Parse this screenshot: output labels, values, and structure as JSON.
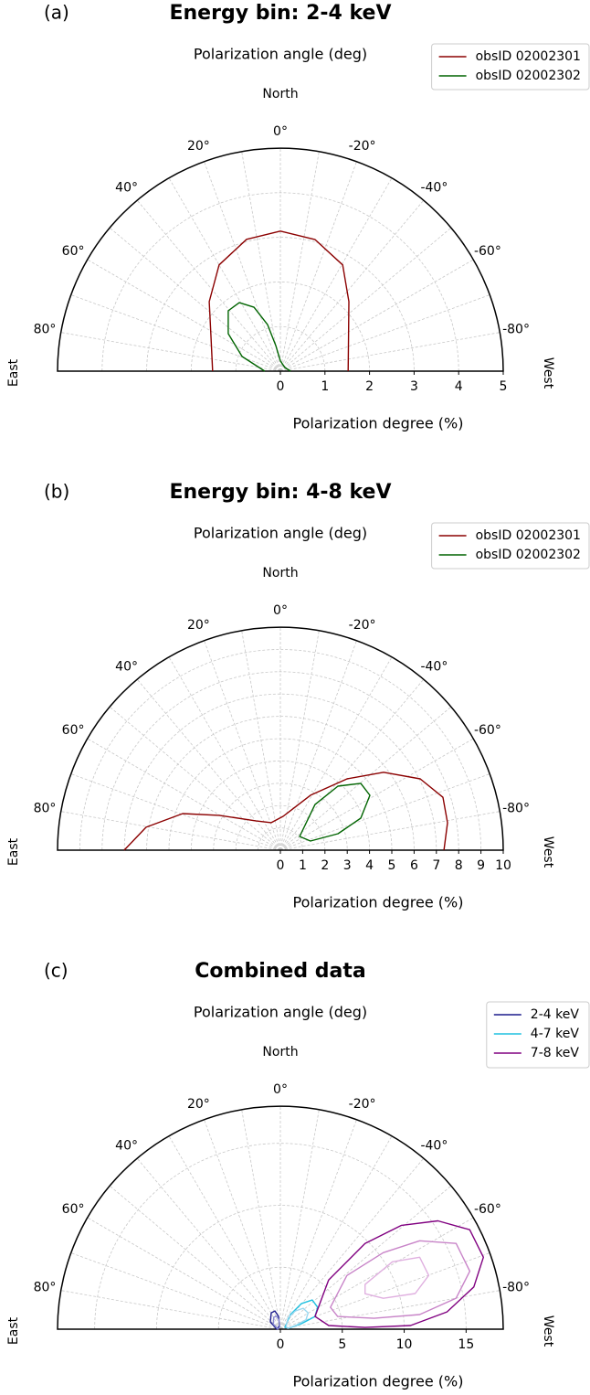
{
  "chart_data": [
    {
      "type": "polar_contour",
      "panel_label": "(a)",
      "title": "Energy bin: 2-4 keV",
      "angle_label": "Polarization angle (deg)",
      "north_label": "North",
      "east_label": "East",
      "west_label": "West",
      "xlabel": "Polarization degree (%)",
      "thetalim": [
        -90,
        90
      ],
      "theta_grid_step": 10,
      "thetaticks": [
        {
          "value": 80,
          "label": "80°"
        },
        {
          "value": 60,
          "label": "60°"
        },
        {
          "value": 40,
          "label": "40°"
        },
        {
          "value": 20,
          "label": "20°"
        },
        {
          "value": 0,
          "label": "0°"
        },
        {
          "value": -20,
          "label": "-20°"
        },
        {
          "value": -40,
          "label": "-40°"
        },
        {
          "value": -60,
          "label": "-60°"
        },
        {
          "value": -80,
          "label": "-80°"
        }
      ],
      "ylim": [
        0,
        5
      ],
      "yticks": [
        0,
        1,
        2,
        3,
        4,
        5
      ],
      "grid": true,
      "legend": "upper right",
      "series": [
        {
          "name": "obsID 02002301",
          "color": "#8b0000",
          "contours": [
            {
              "closed": false,
              "angle": [
                90,
                64.7,
                45.7,
                30.0,
                14.4,
                0,
                -14.8,
                -30.4,
                -44.6,
                -64.1,
                -90
              ],
              "degree": [
                1.52,
                1.72,
                2.23,
                2.75,
                3.05,
                3.14,
                3.05,
                2.76,
                2.19,
                1.7,
                1.52
              ]
            }
          ]
        },
        {
          "name": "obsID 02002302",
          "color": "#006400",
          "contours": [
            {
              "closed": false,
              "angle": [
                90,
                69.1,
                54.3,
                40.8,
                31.0,
                22.5,
                15.4,
                10.1,
                0,
                -51,
                -90
              ],
              "degree": [
                0.35,
                0.92,
                1.44,
                1.79,
                1.79,
                1.55,
                1.08,
                0.58,
                0.23,
                0.13,
                0.23
              ]
            }
          ]
        }
      ]
    },
    {
      "type": "polar_contour",
      "panel_label": "(b)",
      "title": "Energy bin: 4-8 keV",
      "angle_label": "Polarization angle (deg)",
      "north_label": "North",
      "east_label": "East",
      "west_label": "West",
      "xlabel": "Polarization degree (%)",
      "thetalim": [
        -90,
        90
      ],
      "theta_grid_step": 10,
      "thetaticks": [
        {
          "value": 80,
          "label": "80°"
        },
        {
          "value": 60,
          "label": "60°"
        },
        {
          "value": 40,
          "label": "40°"
        },
        {
          "value": 20,
          "label": "20°"
        },
        {
          "value": 0,
          "label": "0°"
        },
        {
          "value": -20,
          "label": "-20°"
        },
        {
          "value": -40,
          "label": "-40°"
        },
        {
          "value": -60,
          "label": "-60°"
        },
        {
          "value": -80,
          "label": "-80°"
        }
      ],
      "ylim": [
        0,
        10
      ],
      "yticks": [
        0,
        1,
        2,
        3,
        4,
        5,
        6,
        7,
        8,
        9,
        10
      ],
      "grid": true,
      "legend": "upper right",
      "series": [
        {
          "name": "obsID 02002301",
          "color": "#8b0000",
          "contours": [
            {
              "closed": false,
              "angle": [
                90,
                80.3,
                69.5,
                60.4,
                40.2,
                18.4,
                -4.6,
                -28.8,
                -43.1,
                -53.0,
                -63.0,
                -72.0,
                -80.7,
                -90
              ],
              "degree": [
                7.01,
                6.11,
                4.68,
                3.16,
                1.72,
                1.3,
                1.52,
                2.81,
                4.38,
                5.8,
                7.04,
                7.67,
                7.6,
                7.34
              ]
            }
          ]
        },
        {
          "name": "obsID 02002302",
          "color": "#006400",
          "contours": [
            {
              "closed": true,
              "angle": [
                -54.5,
                -37.2,
                -42.0,
                -50.3,
                -58.5,
                -68.3,
                -74.1,
                -73.1
              ],
              "degree": [
                1.06,
                2.57,
                3.86,
                4.69,
                4.71,
                3.88,
                2.69,
                1.41
              ]
            }
          ]
        }
      ]
    },
    {
      "type": "polar_contour",
      "panel_label": "(c)",
      "title": "Combined data",
      "angle_label": "Polarization angle (deg)",
      "north_label": "North",
      "east_label": "East",
      "west_label": "West",
      "xlabel": "Polarization degree (%)",
      "thetalim": [
        -90,
        90
      ],
      "theta_grid_step": 10,
      "thetaticks": [
        {
          "value": 80,
          "label": "80°"
        },
        {
          "value": 60,
          "label": "60°"
        },
        {
          "value": 40,
          "label": "40°"
        },
        {
          "value": 20,
          "label": "20°"
        },
        {
          "value": 0,
          "label": "0°"
        },
        {
          "value": -20,
          "label": "-20°"
        },
        {
          "value": -40,
          "label": "-40°"
        },
        {
          "value": -60,
          "label": "-60°"
        },
        {
          "value": -80,
          "label": "-80°"
        }
      ],
      "ylim": [
        0,
        18
      ],
      "yticks": [
        0,
        5,
        10,
        15
      ],
      "grid": true,
      "legend": "upper right",
      "series": [
        {
          "name": "2-4 keV",
          "color": "#1c1c8c",
          "contours": [
            {
              "closed": true,
              "angle": [
                54.0,
                29.1,
                16.7,
                8.1,
                14,
                90
              ],
              "degree": [
                1.0,
                1.51,
                1.53,
                1.04,
                0.3,
                0.29
              ]
            },
            {
              "closed": true,
              "color": "#8a8ad0",
              "angle": [
                54.0,
                29.1,
                16.7,
                8.1,
                14,
                90
              ],
              "degree": [
                0.7,
                1.1,
                1.1,
                0.75,
                0.2,
                0.2
              ]
            }
          ]
        },
        {
          "name": "4-7 keV",
          "color": "#1ec0e0",
          "contours": [
            {
              "closed": true,
              "angle": [
                -68.2,
                -34.5,
                -39.4,
                -47.6,
                -59.7,
                -69.8,
                -75.4,
                -83.7
              ],
              "degree": [
                0.4,
                1.43,
                2.66,
                3.49,
                3.49,
                2.98,
                1.75,
                0.67
              ]
            },
            {
              "closed": true,
              "color": "#9ad8f0",
              "angle": [
                -68.2,
                -34.5,
                -39.4,
                -47.6,
                -59.7,
                -69.8,
                -75.4,
                -83.7
              ],
              "degree": [
                0.5,
                1.1,
                1.9,
                2.5,
                2.6,
                2.2,
                1.3,
                0.6
              ]
            }
          ]
        },
        {
          "name": "7-8 keV",
          "color": "#800080",
          "contours": [
            {
              "closed": true,
              "angle": [
                -69.8,
                -44.5,
                -44.7,
                -49.4,
                -55.5,
                -62.3,
                -70.5,
                -77.7,
                -84.1,
                -88.4,
                -88.8,
                -85.7
              ],
              "degree": [
                2.98,
                5.56,
                9.72,
                12.88,
                15.44,
                17.27,
                17.4,
                15.99,
                13.53,
                10.52,
                6.84,
                3.91
              ]
            },
            {
              "closed": true,
              "color": "#c884c8",
              "angle": [
                -66.4,
                -51.1,
                -53.4,
                -57.6,
                -64.0,
                -73.0,
                -80.0,
                -84.0,
                -83.4,
                -77.5
              ],
              "degree": [
                4.41,
                6.9,
                10.35,
                13.32,
                15.79,
                16.0,
                14.41,
                11.31,
                7.62,
                4.74
              ]
            },
            {
              "closed": true,
              "color": "#e0b0e0",
              "angle": [
                -62.2,
                -59.0,
                -62.7,
                -70.1,
                -75.2,
                -73.3,
                -67.3
              ],
              "degree": [
                7.73,
                10.55,
                12.66,
                12.74,
                11.26,
                8.68,
                7.41
              ]
            }
          ]
        }
      ]
    }
  ]
}
